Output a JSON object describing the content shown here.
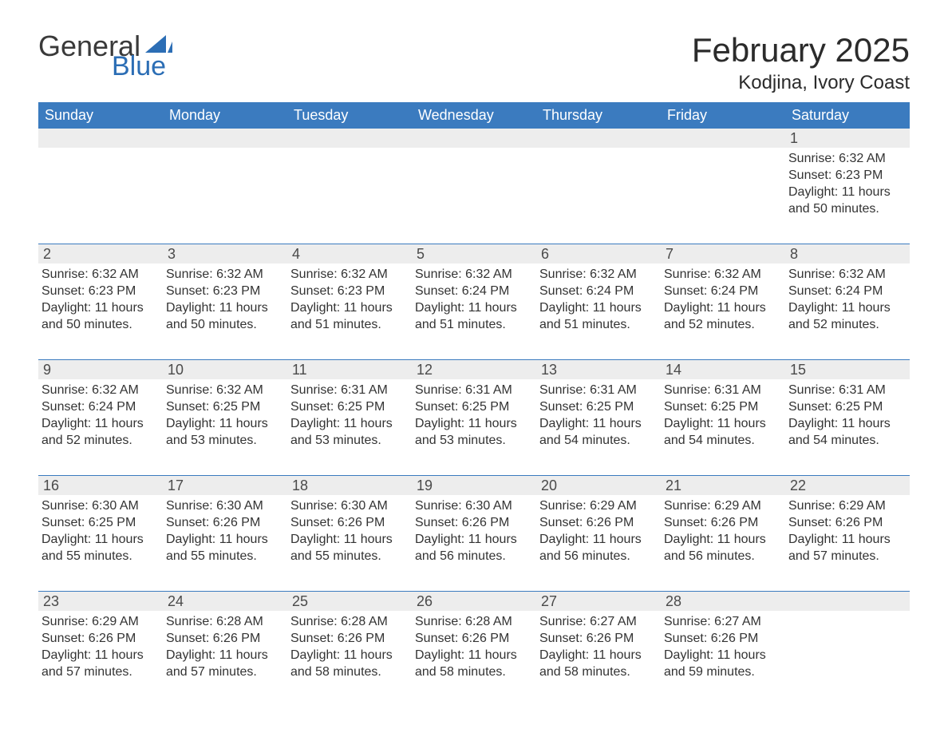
{
  "brand": {
    "word1": "General",
    "word2": "Blue",
    "text_color": "#3a3a3a",
    "accent_color": "#2c6eb5"
  },
  "title": "February 2025",
  "location": "Kodjina, Ivory Coast",
  "colors": {
    "header_bg": "#3b7bbf",
    "header_text": "#ffffff",
    "daynum_bg": "#ededed",
    "body_text": "#333333",
    "week_border": "#3b7bbf",
    "page_bg": "#ffffff"
  },
  "typography": {
    "title_fontsize": 42,
    "location_fontsize": 24,
    "dayheader_fontsize": 18,
    "daynum_fontsize": 18,
    "body_fontsize": 16,
    "font_family": "Arial, Helvetica, sans-serif"
  },
  "labels": {
    "sunrise": "Sunrise",
    "sunset": "Sunset",
    "daylight": "Daylight"
  },
  "day_headers": [
    "Sunday",
    "Monday",
    "Tuesday",
    "Wednesday",
    "Thursday",
    "Friday",
    "Saturday"
  ],
  "weeks": [
    [
      null,
      null,
      null,
      null,
      null,
      null,
      {
        "d": "1",
        "sr": "6:32 AM",
        "ss": "6:23 PM",
        "dl": "11 hours and 50 minutes."
      }
    ],
    [
      {
        "d": "2",
        "sr": "6:32 AM",
        "ss": "6:23 PM",
        "dl": "11 hours and 50 minutes."
      },
      {
        "d": "3",
        "sr": "6:32 AM",
        "ss": "6:23 PM",
        "dl": "11 hours and 50 minutes."
      },
      {
        "d": "4",
        "sr": "6:32 AM",
        "ss": "6:23 PM",
        "dl": "11 hours and 51 minutes."
      },
      {
        "d": "5",
        "sr": "6:32 AM",
        "ss": "6:24 PM",
        "dl": "11 hours and 51 minutes."
      },
      {
        "d": "6",
        "sr": "6:32 AM",
        "ss": "6:24 PM",
        "dl": "11 hours and 51 minutes."
      },
      {
        "d": "7",
        "sr": "6:32 AM",
        "ss": "6:24 PM",
        "dl": "11 hours and 52 minutes."
      },
      {
        "d": "8",
        "sr": "6:32 AM",
        "ss": "6:24 PM",
        "dl": "11 hours and 52 minutes."
      }
    ],
    [
      {
        "d": "9",
        "sr": "6:32 AM",
        "ss": "6:24 PM",
        "dl": "11 hours and 52 minutes."
      },
      {
        "d": "10",
        "sr": "6:32 AM",
        "ss": "6:25 PM",
        "dl": "11 hours and 53 minutes."
      },
      {
        "d": "11",
        "sr": "6:31 AM",
        "ss": "6:25 PM",
        "dl": "11 hours and 53 minutes."
      },
      {
        "d": "12",
        "sr": "6:31 AM",
        "ss": "6:25 PM",
        "dl": "11 hours and 53 minutes."
      },
      {
        "d": "13",
        "sr": "6:31 AM",
        "ss": "6:25 PM",
        "dl": "11 hours and 54 minutes."
      },
      {
        "d": "14",
        "sr": "6:31 AM",
        "ss": "6:25 PM",
        "dl": "11 hours and 54 minutes."
      },
      {
        "d": "15",
        "sr": "6:31 AM",
        "ss": "6:25 PM",
        "dl": "11 hours and 54 minutes."
      }
    ],
    [
      {
        "d": "16",
        "sr": "6:30 AM",
        "ss": "6:25 PM",
        "dl": "11 hours and 55 minutes."
      },
      {
        "d": "17",
        "sr": "6:30 AM",
        "ss": "6:26 PM",
        "dl": "11 hours and 55 minutes."
      },
      {
        "d": "18",
        "sr": "6:30 AM",
        "ss": "6:26 PM",
        "dl": "11 hours and 55 minutes."
      },
      {
        "d": "19",
        "sr": "6:30 AM",
        "ss": "6:26 PM",
        "dl": "11 hours and 56 minutes."
      },
      {
        "d": "20",
        "sr": "6:29 AM",
        "ss": "6:26 PM",
        "dl": "11 hours and 56 minutes."
      },
      {
        "d": "21",
        "sr": "6:29 AM",
        "ss": "6:26 PM",
        "dl": "11 hours and 56 minutes."
      },
      {
        "d": "22",
        "sr": "6:29 AM",
        "ss": "6:26 PM",
        "dl": "11 hours and 57 minutes."
      }
    ],
    [
      {
        "d": "23",
        "sr": "6:29 AM",
        "ss": "6:26 PM",
        "dl": "11 hours and 57 minutes."
      },
      {
        "d": "24",
        "sr": "6:28 AM",
        "ss": "6:26 PM",
        "dl": "11 hours and 57 minutes."
      },
      {
        "d": "25",
        "sr": "6:28 AM",
        "ss": "6:26 PM",
        "dl": "11 hours and 58 minutes."
      },
      {
        "d": "26",
        "sr": "6:28 AM",
        "ss": "6:26 PM",
        "dl": "11 hours and 58 minutes."
      },
      {
        "d": "27",
        "sr": "6:27 AM",
        "ss": "6:26 PM",
        "dl": "11 hours and 58 minutes."
      },
      {
        "d": "28",
        "sr": "6:27 AM",
        "ss": "6:26 PM",
        "dl": "11 hours and 59 minutes."
      },
      null
    ]
  ]
}
